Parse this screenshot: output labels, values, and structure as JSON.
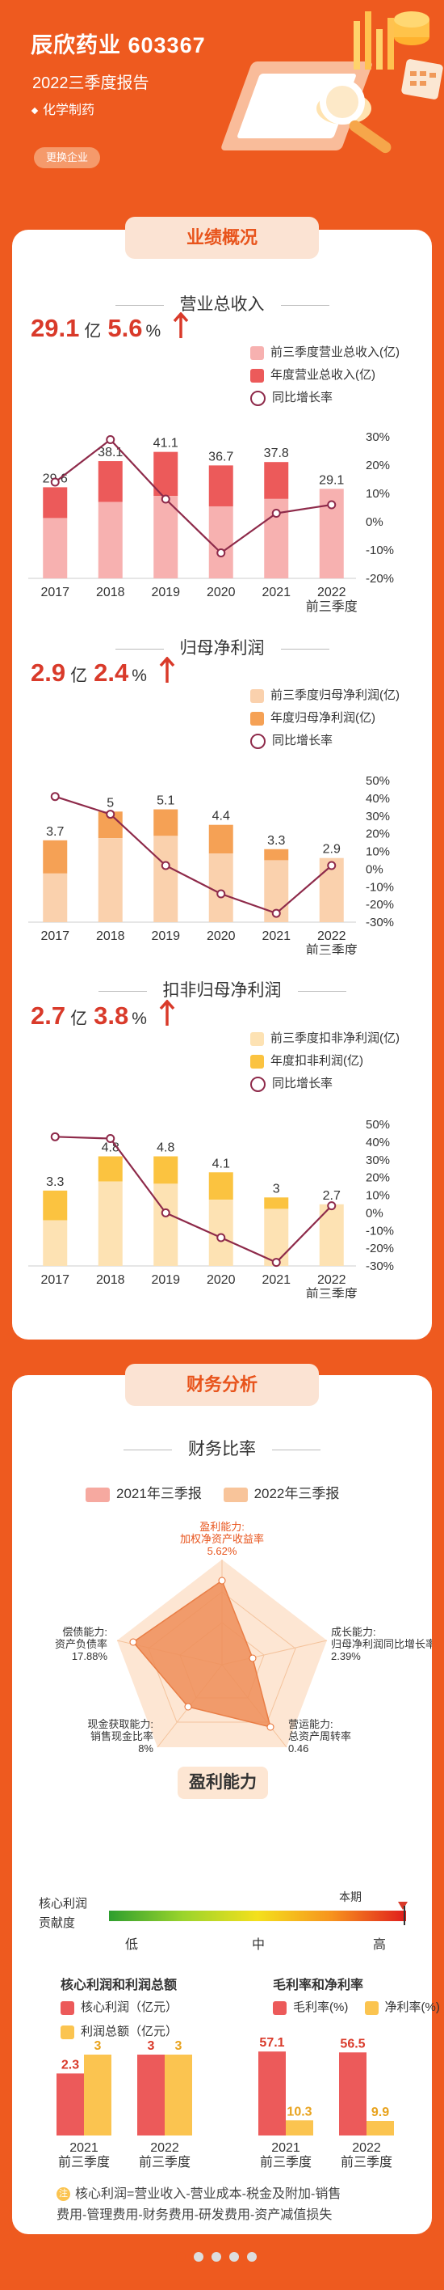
{
  "header": {
    "company": "辰欣药业 603367",
    "report": "2022三季度报告",
    "industry": "化学制药",
    "switch_label": "更换企业"
  },
  "performance": {
    "tab": "业绩概况",
    "revenue": {
      "title": "营业总收入",
      "kpi_value": "29.1",
      "kpi_unit": "亿",
      "kpi_growth": "5.6",
      "kpi_growth_unit": "%",
      "legend": [
        "前三季度营业总收入(亿)",
        "年度营业总收入(亿)",
        "同比增长率"
      ]
    },
    "net_profit": {
      "title": "归母净利润",
      "kpi_value": "2.9",
      "kpi_unit": "亿",
      "kpi_growth": "2.4",
      "kpi_growth_unit": "%",
      "legend": [
        "前三季度归母净利润(亿)",
        "年度归母净利润(亿)",
        "同比增长率"
      ]
    },
    "deducted_profit": {
      "title": "扣非归母净利润",
      "kpi_value": "2.7",
      "kpi_unit": "亿",
      "kpi_growth": "3.8",
      "kpi_growth_unit": "%",
      "legend": [
        "前三季度扣非净利润(亿)",
        "年度扣非利润(亿)",
        "同比增长率"
      ]
    }
  },
  "finance": {
    "tab": "财务分析",
    "ratio_title": "财务比率",
    "ratio_legend": [
      "2021年三季报",
      "2022年三季报"
    ],
    "radar_labels": [
      {
        "l1": "盈利能力:",
        "l2": "加权净资产收益率",
        "v": "5.62%"
      },
      {
        "l1": "成长能力:",
        "l2": "归母净利润同比增长率",
        "v": "2.39%"
      },
      {
        "l1": "营运能力:",
        "l2": "总资产周转率",
        "v": "0.46"
      },
      {
        "l1": "现金获取能力:",
        "l2": "销售现金比率",
        "v": "8%"
      },
      {
        "l1": "偿债能力:",
        "l2": "资产负债率",
        "v": "17.88%"
      }
    ],
    "profit_title": "盈利能力",
    "gauge": {
      "label1": "核心利润",
      "label2": "贡献度",
      "current": "本期",
      "low": "低",
      "mid": "中",
      "high": "高"
    },
    "core_title": "核心利润和利润总额",
    "core_legend": [
      "核心利润（亿元）",
      "利润总额（亿元）"
    ],
    "margin_title": "毛利率和净利率",
    "margin_legend": [
      "毛利率(%)",
      "净利率(%)"
    ],
    "note_icon": "注",
    "note_line1": "核心利润=营业收入-营业成本-税金及附加-销售",
    "note_line2": "费用-管理费用-财务费用-研发费用-资产减值损失"
  },
  "chart_data": [
    {
      "type": "bar",
      "title": "营业总收入",
      "categories": [
        "2017",
        "2018",
        "2019",
        "2020",
        "2021",
        "2022\n前三季度"
      ],
      "series": [
        {
          "name": "前三季度营业总收入(亿)",
          "values": [
            19.6,
            24.8,
            26.8,
            23.4,
            25.8,
            29.1
          ]
        },
        {
          "name": "年度营业总收入(亿)",
          "values": [
            29.6,
            38.1,
            41.1,
            36.7,
            37.8,
            null
          ]
        },
        {
          "name": "同比增长率",
          "values": [
            14,
            29,
            8,
            -11,
            3,
            6
          ]
        }
      ],
      "y2_ticks": [
        "30%",
        "20%",
        "10%",
        "0%",
        "-10%",
        "-20%"
      ]
    },
    {
      "type": "bar",
      "title": "归母净利润",
      "categories": [
        "2017",
        "2018",
        "2019",
        "2020",
        "2021",
        "2022\n前三季度"
      ],
      "series": [
        {
          "name": "前三季度归母净利润(亿)",
          "values": [
            2.2,
            3.8,
            3.9,
            3.1,
            2.8,
            2.9
          ]
        },
        {
          "name": "年度归母净利润(亿)",
          "values": [
            3.7,
            5,
            5.1,
            4.4,
            3.3,
            null
          ]
        },
        {
          "name": "同比增长率",
          "values": [
            41,
            31,
            2,
            -14,
            -25,
            2
          ]
        }
      ],
      "y2_ticks": [
        "50%",
        "40%",
        "30%",
        "20%",
        "10%",
        "0%",
        "-10%",
        "-20%",
        "-30%"
      ]
    },
    {
      "type": "bar",
      "title": "扣非归母净利润",
      "categories": [
        "2017",
        "2018",
        "2019",
        "2020",
        "2021",
        "2022\n前三季度"
      ],
      "series": [
        {
          "name": "前三季度扣非净利润(亿)",
          "values": [
            2.0,
            3.7,
            3.6,
            2.9,
            2.5,
            2.7
          ]
        },
        {
          "name": "年度扣非利润(亿)",
          "values": [
            3.3,
            4.8,
            4.8,
            4.1,
            3,
            null
          ]
        },
        {
          "name": "同比增长率",
          "values": [
            43,
            42,
            0,
            -14,
            -28,
            4
          ]
        }
      ],
      "y2_ticks": [
        "50%",
        "40%",
        "30%",
        "20%",
        "10%",
        "0%",
        "-10%",
        "-20%",
        "-30%"
      ]
    },
    {
      "type": "bar",
      "title": "核心利润和利润总额",
      "categories": [
        "2021\n前三季度",
        "2022\n前三季度"
      ],
      "series": [
        {
          "name": "核心利润（亿元）",
          "values": [
            2.3,
            3
          ]
        },
        {
          "name": "利润总额（亿元）",
          "values": [
            3,
            3
          ]
        }
      ]
    },
    {
      "type": "bar",
      "title": "毛利率和净利率",
      "categories": [
        "2021\n前三季度",
        "2022\n前三季度"
      ],
      "series": [
        {
          "name": "毛利率(%)",
          "values": [
            57.1,
            56.5
          ]
        },
        {
          "name": "净利率(%)",
          "values": [
            10.3,
            9.9
          ]
        }
      ]
    }
  ]
}
